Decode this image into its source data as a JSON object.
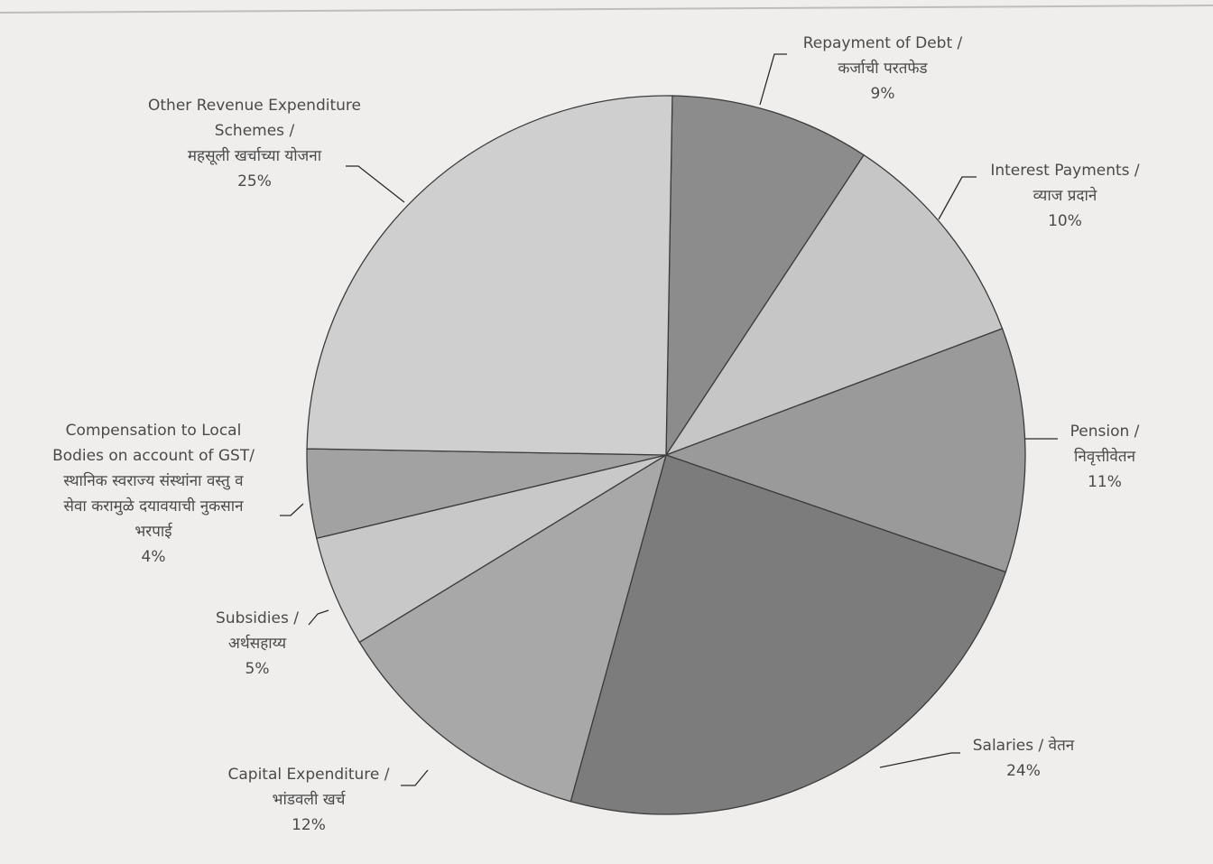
{
  "chart_data": {
    "type": "pie",
    "title": "",
    "slices": [
      {
        "label_lines": [
          "Repayment of Debt /",
          "कर्जाची परतफेड",
          "9%"
        ],
        "value": 9,
        "color": "#8c8c8c"
      },
      {
        "label_lines": [
          "Interest Payments /",
          "व्याज प्रदाने",
          "10%"
        ],
        "value": 10,
        "color": "#c6c6c6"
      },
      {
        "label_lines": [
          "Pension /",
          "निवृत्तीवेतन",
          "11%"
        ],
        "value": 11,
        "color": "#9a9a9a"
      },
      {
        "label_lines": [
          "Salaries / वेतन",
          "24%"
        ],
        "value": 24,
        "color": "#7c7c7c"
      },
      {
        "label_lines": [
          "Capital Expenditure /",
          "भांडवली खर्च",
          "12%"
        ],
        "value": 12,
        "color": "#a8a8a8"
      },
      {
        "label_lines": [
          "Subsidies /",
          "अर्थसहाय्य",
          "5%"
        ],
        "value": 5,
        "color": "#c8c8c8"
      },
      {
        "label_lines": [
          "Compensation to Local",
          "Bodies on account of GST/",
          "स्थानिक स्वराज्य संस्थांना वस्तु व",
          "सेवा करामुळे दयावयाची नुकसान",
          "भरपाई",
          "4%"
        ],
        "value": 4,
        "color": "#a2a2a2"
      },
      {
        "label_lines": [
          "Other Revenue Expenditure",
          "Schemes /",
          "महसूली खर्चाच्या योजना",
          "25%"
        ],
        "value": 25,
        "color": "#cfcfcf"
      }
    ]
  }
}
